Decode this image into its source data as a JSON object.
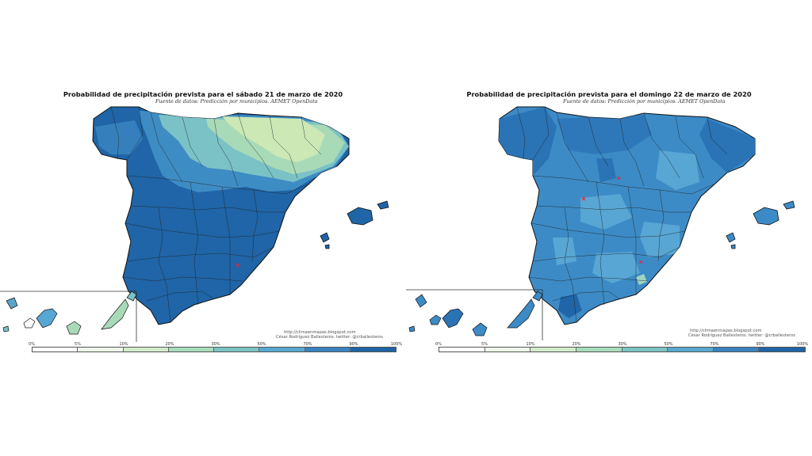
{
  "maps": [
    {
      "title": "Probabilidad de precipitación prevista para el sábado 21 de marzo de 2020",
      "subtitle": "Fuente de datos: Predicción por municipios. AEMET OpenData",
      "credit_url": "http://climaenmapas.blogspot.com",
      "credit_author": "César Rodríguez Ballesteros. twitter: @crballesteros",
      "legend_labels": [
        "0%",
        "5%",
        "10%",
        "20%",
        "30%",
        "50%",
        "70%",
        "90%",
        "100%"
      ],
      "legend_colors": [
        "#ffffff",
        "#eef7e9",
        "#d2ecc9",
        "#a8dcbc",
        "#7cc3c4",
        "#58a8cf",
        "#3883c0",
        "#1e64a6"
      ],
      "palette": {
        "main": "#1f65a7",
        "mid": "#3e8cc4",
        "light": "#7ac2c6",
        "lighter": "#a9dab8",
        "lightest": "#cbe8b5"
      }
    },
    {
      "title": "Probabilidad de precipitación prevista para el domingo 22 de marzo de 2020",
      "subtitle": "Fuente de datos: Predicción por municipios. AEMET OpenData",
      "credit_url": "http://climaenmapas.blogspot.com",
      "credit_author": "César Rodríguez Ballesteros. twitter: @crballesteros",
      "legend_labels": [
        "0%",
        "5%",
        "10%",
        "20%",
        "30%",
        "50%",
        "70%",
        "90%",
        "100%"
      ],
      "legend_colors": [
        "#ffffff",
        "#eef7e9",
        "#d2ecc9",
        "#a8dcbc",
        "#7cc3c4",
        "#58a8cf",
        "#3883c0",
        "#1e64a6"
      ],
      "palette": {
        "main": "#3c8bc6",
        "mid": "#2a73b5",
        "light": "#58a6d4",
        "lighter": "#7cc0cc",
        "lightest": "#9ed4c2"
      }
    }
  ]
}
